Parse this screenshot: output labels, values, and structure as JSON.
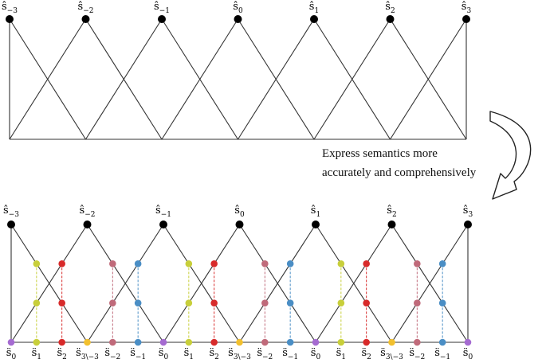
{
  "top_panel": {
    "labels": [
      {
        "base": "ŝ",
        "sub": "−3"
      },
      {
        "base": "ŝ",
        "sub": "−2"
      },
      {
        "base": "ŝ",
        "sub": "−1"
      },
      {
        "base": "ŝ",
        "sub": "0"
      },
      {
        "base": "ŝ",
        "sub": "1"
      },
      {
        "base": "ŝ",
        "sub": "2"
      },
      {
        "base": "ŝ",
        "sub": "3"
      }
    ]
  },
  "caption": {
    "line1": "Express semantics more",
    "line2": "accurately and comprehensively"
  },
  "bottom_panel": {
    "top_labels": [
      {
        "base": "ŝ",
        "sub": "−3"
      },
      {
        "base": "ŝ",
        "sub": "−2"
      },
      {
        "base": "ŝ",
        "sub": "−1"
      },
      {
        "base": "ŝ",
        "sub": "0"
      },
      {
        "base": "ŝ",
        "sub": "1"
      },
      {
        "base": "ŝ",
        "sub": "2"
      },
      {
        "base": "ŝ",
        "sub": "3"
      }
    ],
    "bottom_labels": [
      {
        "base": "s̈",
        "sub": "0"
      },
      {
        "base": "s̈",
        "sub": "1"
      },
      {
        "base": "s̈",
        "sub": "2"
      },
      {
        "base": "s̈",
        "sub": "3\\−3"
      },
      {
        "base": "s̈",
        "sub": "−2"
      },
      {
        "base": "s̈",
        "sub": "−1"
      },
      {
        "base": "s̈",
        "sub": "0"
      },
      {
        "base": "s̈",
        "sub": "1"
      },
      {
        "base": "s̈",
        "sub": "2"
      },
      {
        "base": "s̈",
        "sub": "3\\−3"
      },
      {
        "base": "s̈",
        "sub": "−2"
      },
      {
        "base": "s̈",
        "sub": "−1"
      },
      {
        "base": "s̈",
        "sub": "0"
      },
      {
        "base": "s̈",
        "sub": "1"
      },
      {
        "base": "s̈",
        "sub": "2"
      },
      {
        "base": "s̈",
        "sub": "3\\−3"
      },
      {
        "base": "s̈",
        "sub": "−2"
      },
      {
        "base": "s̈",
        "sub": "−1"
      },
      {
        "base": "s̈",
        "sub": "0"
      }
    ]
  },
  "colors": {
    "s0": "#a56bd1",
    "s1": "#c8cf3a",
    "s2": "#d82a2a",
    "s3": "#f2c02e",
    "sm2": "#c06a7a",
    "sm1": "#4a8ec5",
    "hat": "#000000",
    "line": "#333333"
  }
}
